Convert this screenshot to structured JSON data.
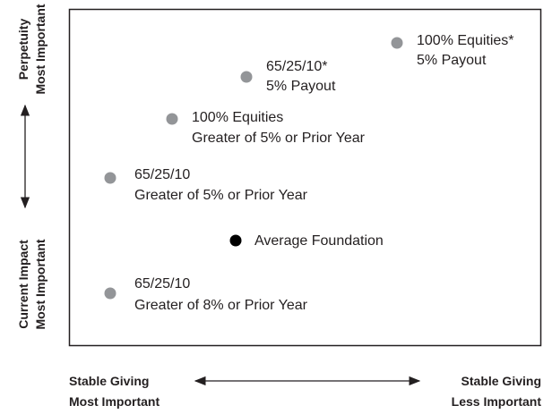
{
  "y_axis": {
    "top": [
      "Perpetuity",
      "Most Important"
    ],
    "bottom": [
      "Current Impact",
      "Most Important"
    ]
  },
  "x_axis": {
    "left": [
      "Stable Giving",
      "Most Important"
    ],
    "right": [
      "Stable Giving",
      "Less Important"
    ]
  },
  "points": [
    {
      "label": [
        "100% Equities*",
        "5% Payout"
      ]
    },
    {
      "label": [
        "65/25/10*",
        "5% Payout"
      ]
    },
    {
      "label": [
        "100% Equities",
        "Greater of 5% or Prior Year"
      ]
    },
    {
      "label": [
        "65/25/10",
        "Greater of 5% or Prior Year"
      ]
    },
    {
      "label": [
        "Average Foundation"
      ]
    },
    {
      "label": [
        "65/25/10",
        "Greater of 8% or Prior Year"
      ]
    }
  ]
}
